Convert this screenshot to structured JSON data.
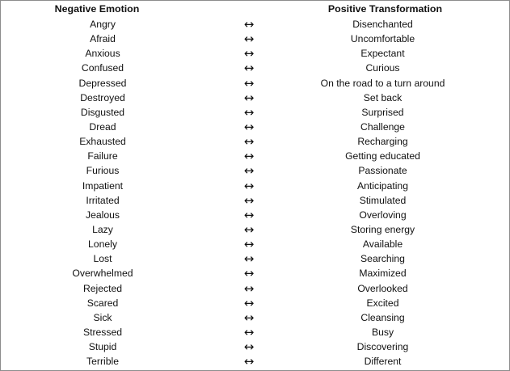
{
  "table": {
    "headers": {
      "negative": "Negative Emotion",
      "positive": "Positive Transformation"
    },
    "arrow_glyph": "↔",
    "rows": [
      {
        "negative": "Angry",
        "arrow": "↔",
        "positive": "Disenchanted"
      },
      {
        "negative": "Afraid",
        "arrow": "↔",
        "positive": "Uncomfortable"
      },
      {
        "negative": "Anxious",
        "arrow": "↔",
        "positive": "Expectant"
      },
      {
        "negative": "Confused",
        "arrow": "↔",
        "positive": "Curious"
      },
      {
        "negative": "Depressed",
        "arrow": "↔",
        "positive": "On the road to a turn around"
      },
      {
        "negative": "Destroyed",
        "arrow": "↔",
        "positive": "Set back"
      },
      {
        "negative": "Disgusted",
        "arrow": "↔",
        "positive": "Surprised"
      },
      {
        "negative": "Dread",
        "arrow": "↔",
        "positive": "Challenge"
      },
      {
        "negative": "Exhausted",
        "arrow": "↔",
        "positive": "Recharging"
      },
      {
        "negative": "Failure",
        "arrow": "↔",
        "positive": "Getting educated"
      },
      {
        "negative": "Furious",
        "arrow": "↔",
        "positive": "Passionate"
      },
      {
        "negative": "Impatient",
        "arrow": "↔",
        "positive": "Anticipating"
      },
      {
        "negative": "Irritated",
        "arrow": "↔",
        "positive": "Stimulated"
      },
      {
        "negative": "Jealous",
        "arrow": "↔",
        "positive": "Overloving"
      },
      {
        "negative": "Lazy",
        "arrow": "↔",
        "positive": "Storing energy"
      },
      {
        "negative": "Lonely",
        "arrow": "↔",
        "positive": "Available"
      },
      {
        "negative": "Lost",
        "arrow": "↔",
        "positive": "Searching"
      },
      {
        "negative": "Overwhelmed",
        "arrow": "↔",
        "positive": "Maximized"
      },
      {
        "negative": "Rejected",
        "arrow": "↔",
        "positive": "Overlooked"
      },
      {
        "negative": "Scared",
        "arrow": "↔",
        "positive": "Excited"
      },
      {
        "negative": "Sick",
        "arrow": "↔",
        "positive": "Cleansing"
      },
      {
        "negative": "Stressed",
        "arrow": "↔",
        "positive": "Busy"
      },
      {
        "negative": "Stupid",
        "arrow": "↔",
        "positive": "Discovering"
      },
      {
        "negative": "Terrible",
        "arrow": "↔",
        "positive": "Different"
      }
    ]
  }
}
